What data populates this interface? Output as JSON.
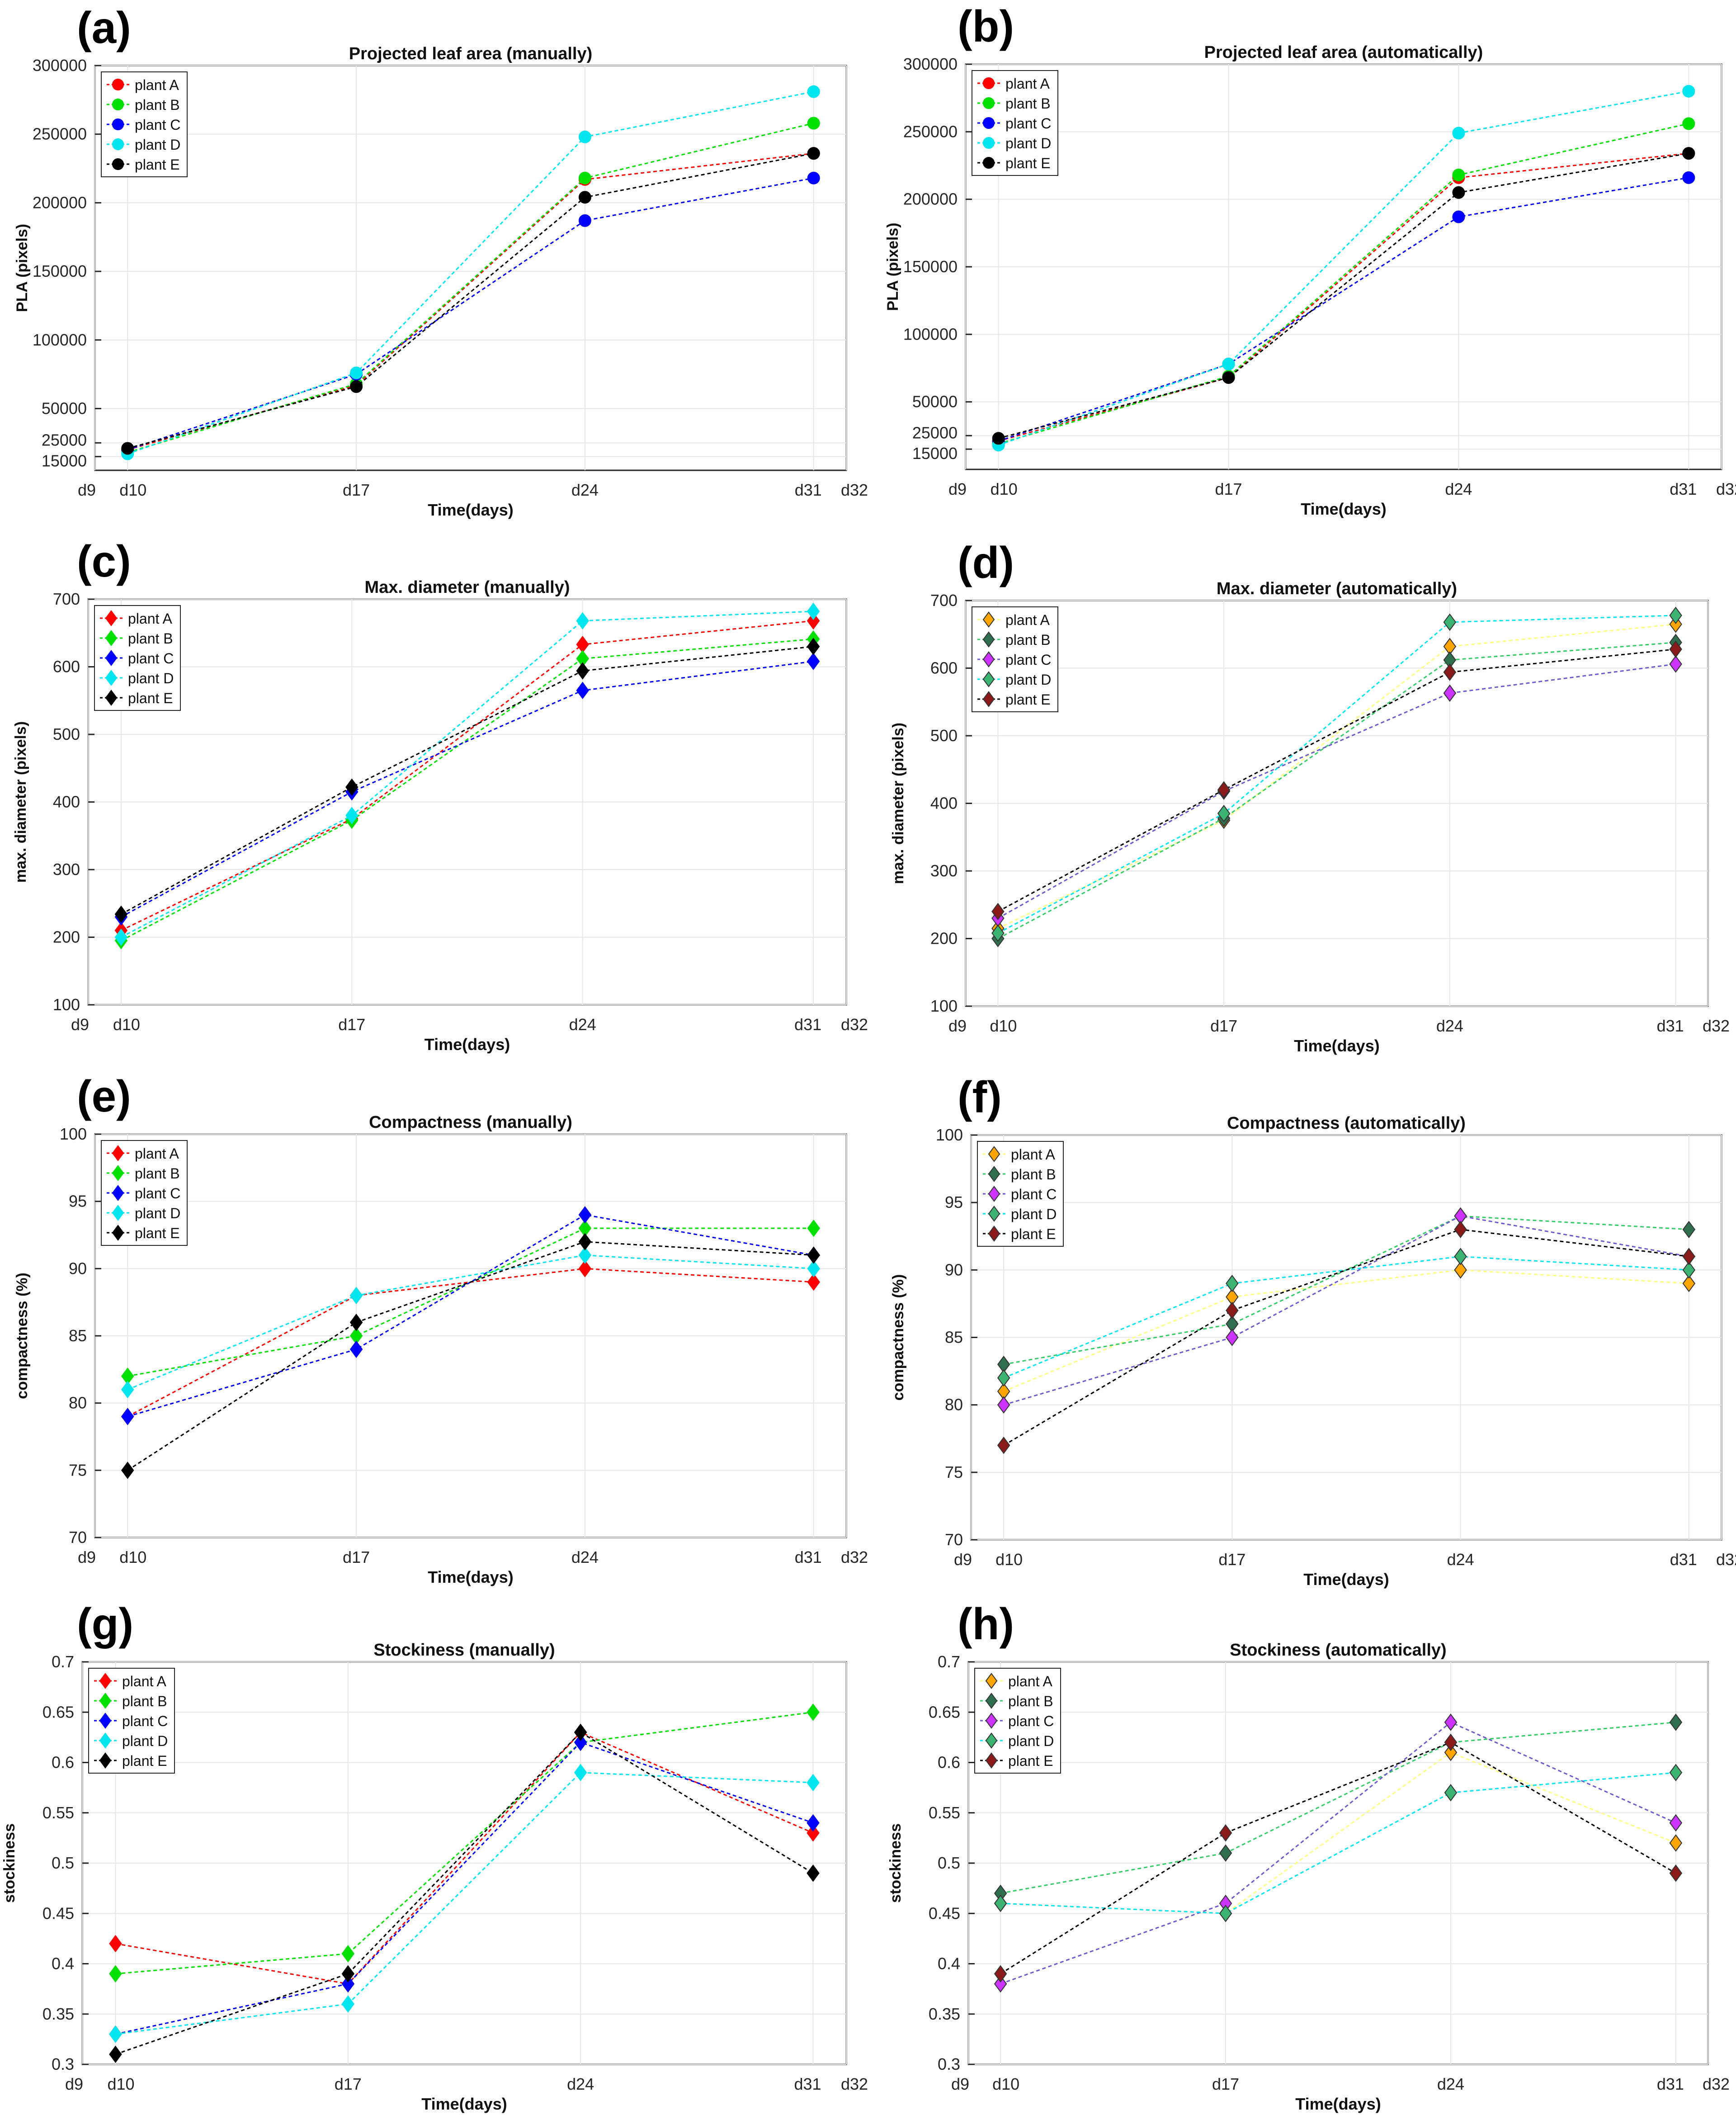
{
  "figure": {
    "marker_shape_note": "circles for PLA panels, diamonds for others"
  },
  "chart_data": [
    {
      "panel": "(a)",
      "type": "line",
      "title": "Projected leaf area (manually)",
      "xlabel": "Time(days)",
      "ylabel": "PLA (pixels)",
      "x_ticks": [
        "d9",
        "d10",
        "d17",
        "d24",
        "d31",
        "d32"
      ],
      "x_tick_values": [
        9,
        10,
        17,
        24,
        31,
        32
      ],
      "xlim": [
        9,
        32
      ],
      "y_ticks": [
        15000,
        25000,
        50000,
        100000,
        150000,
        200000,
        250000,
        300000
      ],
      "ylim": [
        5000,
        300000
      ],
      "marker": "circle",
      "legend": "top-left",
      "grid": true,
      "x": [
        10,
        17,
        24,
        31
      ],
      "series": [
        {
          "name": "plant A",
          "color": "#ff0000",
          "face": "#ff0000",
          "values": [
            20000,
            67000,
            217000,
            236000
          ]
        },
        {
          "name": "plant B",
          "color": "#00e000",
          "face": "#00e000",
          "values": [
            18000,
            68000,
            218000,
            258000
          ]
        },
        {
          "name": "plant C",
          "color": "#0000ff",
          "face": "#0000ff",
          "values": [
            20000,
            75000,
            187000,
            218000
          ]
        },
        {
          "name": "plant D",
          "color": "#00e5ee",
          "face": "#00e5ee",
          "values": [
            17000,
            76000,
            248000,
            281000
          ]
        },
        {
          "name": "plant E",
          "color": "#000000",
          "face": "#000000",
          "values": [
            21000,
            66000,
            204000,
            236000
          ]
        }
      ]
    },
    {
      "panel": "(b)",
      "type": "line",
      "title": "Projected leaf area (automatically)",
      "xlabel": "Time(days)",
      "ylabel": "PLA (pixels)",
      "x_ticks": [
        "d9",
        "d10",
        "d17",
        "d24",
        "d31",
        "d32"
      ],
      "x_tick_values": [
        9,
        10,
        17,
        24,
        31,
        32
      ],
      "xlim": [
        9,
        32
      ],
      "y_ticks": [
        15000,
        25000,
        50000,
        100000,
        150000,
        200000,
        250000,
        300000
      ],
      "ylim": [
        0,
        300000
      ],
      "marker": "circle",
      "legend": "top-left",
      "grid": true,
      "x": [
        10,
        17,
        24,
        31
      ],
      "series": [
        {
          "name": "plant A",
          "color": "#ff0000",
          "face": "#ff0000",
          "values": [
            21000,
            68000,
            216000,
            234000
          ]
        },
        {
          "name": "plant B",
          "color": "#00e000",
          "face": "#00e000",
          "values": [
            19000,
            69000,
            218000,
            256000
          ]
        },
        {
          "name": "plant C",
          "color": "#0000ff",
          "face": "#0000ff",
          "values": [
            21000,
            78000,
            187000,
            216000
          ]
        },
        {
          "name": "plant D",
          "color": "#00e5ee",
          "face": "#00e5ee",
          "values": [
            18000,
            78000,
            249000,
            280000
          ]
        },
        {
          "name": "plant E",
          "color": "#000000",
          "face": "#000000",
          "values": [
            23000,
            68000,
            205000,
            234000
          ]
        }
      ]
    },
    {
      "panel": "(c)",
      "type": "line",
      "title": "Max. diameter (manually)",
      "xlabel": "Time(days)",
      "ylabel": "max. diameter (pixels)",
      "x_ticks": [
        "d9",
        "d10",
        "d17",
        "d24",
        "d31",
        "d32"
      ],
      "x_tick_values": [
        9,
        10,
        17,
        24,
        31,
        32
      ],
      "xlim": [
        9,
        32
      ],
      "y_ticks": [
        100,
        200,
        300,
        400,
        500,
        600,
        700
      ],
      "ylim": [
        100,
        700
      ],
      "marker": "diamond",
      "legend": "top-left",
      "grid": true,
      "x": [
        10,
        17,
        24,
        31
      ],
      "series": [
        {
          "name": "plant A",
          "color": "#ff0000",
          "face": "#ff0000",
          "values": [
            210,
            375,
            633,
            668
          ]
        },
        {
          "name": "plant B",
          "color": "#00e000",
          "face": "#00e000",
          "values": [
            195,
            373,
            612,
            641
          ]
        },
        {
          "name": "plant C",
          "color": "#0000ff",
          "face": "#0000ff",
          "values": [
            230,
            415,
            565,
            608
          ]
        },
        {
          "name": "plant D",
          "color": "#00e5ee",
          "face": "#00e5ee",
          "values": [
            200,
            380,
            668,
            682
          ]
        },
        {
          "name": "plant E",
          "color": "#000000",
          "face": "#000000",
          "values": [
            234,
            422,
            594,
            630
          ]
        }
      ]
    },
    {
      "panel": "(d)",
      "type": "line",
      "title": "Max. diameter (automatically)",
      "xlabel": "Time(days)",
      "ylabel": "max. diameter (pixels)",
      "x_ticks": [
        "d9",
        "d10",
        "d17",
        "d24",
        "d31",
        "d32"
      ],
      "x_tick_values": [
        9,
        10,
        17,
        24,
        31,
        32
      ],
      "xlim": [
        9,
        32
      ],
      "y_ticks": [
        100,
        200,
        300,
        400,
        500,
        600,
        700
      ],
      "ylim": [
        100,
        700
      ],
      "marker": "diamond",
      "legend": "top-left",
      "grid": true,
      "x": [
        10,
        17,
        24,
        31
      ],
      "series": [
        {
          "name": "plant A",
          "color": "#ffff80",
          "face": "#ffa500",
          "values": [
            215,
            375,
            632,
            665
          ]
        },
        {
          "name": "plant B",
          "color": "#33cc66",
          "face": "#2f6f4f",
          "values": [
            200,
            378,
            612,
            638
          ]
        },
        {
          "name": "plant C",
          "color": "#6a5acd",
          "face": "#cc33ff",
          "values": [
            230,
            418,
            563,
            606
          ]
        },
        {
          "name": "plant D",
          "color": "#00e5ee",
          "face": "#3cb371",
          "values": [
            208,
            385,
            668,
            678
          ]
        },
        {
          "name": "plant E",
          "color": "#000000",
          "face": "#8b1a1a",
          "values": [
            240,
            420,
            594,
            628
          ]
        }
      ]
    },
    {
      "panel": "(e)",
      "type": "line",
      "title": "Compactness (manually)",
      "xlabel": "Time(days)",
      "ylabel": "compactness (%)",
      "x_ticks": [
        "d9",
        "d10",
        "d17",
        "d24",
        "d31",
        "d32"
      ],
      "x_tick_values": [
        9,
        10,
        17,
        24,
        31,
        32
      ],
      "xlim": [
        9,
        32
      ],
      "y_ticks": [
        70,
        75,
        80,
        85,
        90,
        95,
        100
      ],
      "ylim": [
        70,
        100
      ],
      "marker": "diamond",
      "legend": "top-left",
      "grid": true,
      "x": [
        10,
        17,
        24,
        31
      ],
      "series": [
        {
          "name": "plant A",
          "color": "#ff0000",
          "face": "#ff0000",
          "values": [
            79,
            88,
            90,
            89
          ]
        },
        {
          "name": "plant B",
          "color": "#00e000",
          "face": "#00e000",
          "values": [
            82,
            85,
            93,
            93
          ]
        },
        {
          "name": "plant C",
          "color": "#0000ff",
          "face": "#0000ff",
          "values": [
            79,
            84,
            94,
            91
          ]
        },
        {
          "name": "plant D",
          "color": "#00e5ee",
          "face": "#00e5ee",
          "values": [
            81,
            88,
            91,
            90
          ]
        },
        {
          "name": "plant E",
          "color": "#000000",
          "face": "#000000",
          "values": [
            75,
            86,
            92,
            91
          ]
        }
      ]
    },
    {
      "panel": "(f)",
      "type": "line",
      "title": "Compactness (automatically)",
      "xlabel": "Time(days)",
      "ylabel": "compactness (%)",
      "x_ticks": [
        "d9",
        "d10",
        "d17",
        "d24",
        "d31",
        "d32"
      ],
      "x_tick_values": [
        9,
        10,
        17,
        24,
        31,
        32
      ],
      "xlim": [
        9,
        32
      ],
      "y_ticks": [
        70,
        75,
        80,
        85,
        90,
        95,
        100
      ],
      "ylim": [
        70,
        100
      ],
      "marker": "diamond",
      "legend": "top-left",
      "grid": true,
      "x": [
        10,
        17,
        24,
        31
      ],
      "series": [
        {
          "name": "plant A",
          "color": "#ffff80",
          "face": "#ffa500",
          "values": [
            81,
            88,
            90,
            89
          ]
        },
        {
          "name": "plant B",
          "color": "#33cc66",
          "face": "#2f6f4f",
          "values": [
            83,
            86,
            94,
            93
          ]
        },
        {
          "name": "plant C",
          "color": "#6a5acd",
          "face": "#cc33ff",
          "values": [
            80,
            85,
            94,
            91
          ]
        },
        {
          "name": "plant D",
          "color": "#00e5ee",
          "face": "#3cb371",
          "values": [
            82,
            89,
            91,
            90
          ]
        },
        {
          "name": "plant E",
          "color": "#000000",
          "face": "#8b1a1a",
          "values": [
            77,
            87,
            93,
            91
          ]
        }
      ]
    },
    {
      "panel": "(g)",
      "type": "line",
      "title": "Stockiness (manually)",
      "xlabel": "Time(days)",
      "ylabel": "stockiness",
      "x_ticks": [
        "d9",
        "d10",
        "d17",
        "d24",
        "d31",
        "d32"
      ],
      "x_tick_values": [
        9,
        10,
        17,
        24,
        31,
        32
      ],
      "xlim": [
        9,
        32
      ],
      "y_ticks": [
        0.3,
        0.35,
        0.4,
        0.45,
        0.5,
        0.55,
        0.6,
        0.65,
        0.7
      ],
      "ylim": [
        0.3,
        0.7
      ],
      "marker": "diamond",
      "legend": "top-left",
      "grid": true,
      "x": [
        10,
        17,
        24,
        31
      ],
      "series": [
        {
          "name": "plant A",
          "color": "#ff0000",
          "face": "#ff0000",
          "values": [
            0.42,
            0.38,
            0.63,
            0.53
          ]
        },
        {
          "name": "plant B",
          "color": "#00e000",
          "face": "#00e000",
          "values": [
            0.39,
            0.41,
            0.62,
            0.65
          ]
        },
        {
          "name": "plant C",
          "color": "#0000ff",
          "face": "#0000ff",
          "values": [
            0.33,
            0.38,
            0.62,
            0.54
          ]
        },
        {
          "name": "plant D",
          "color": "#00e5ee",
          "face": "#00e5ee",
          "values": [
            0.33,
            0.36,
            0.59,
            0.58
          ]
        },
        {
          "name": "plant E",
          "color": "#000000",
          "face": "#000000",
          "values": [
            0.31,
            0.39,
            0.63,
            0.49
          ]
        }
      ]
    },
    {
      "panel": "(h)",
      "type": "line",
      "title": "Stockiness (automatically)",
      "xlabel": "Time(days)",
      "ylabel": "stockiness",
      "x_ticks": [
        "d9",
        "d10",
        "d17",
        "d24",
        "d31",
        "d32"
      ],
      "x_tick_values": [
        9,
        10,
        17,
        24,
        31,
        32
      ],
      "xlim": [
        9,
        32
      ],
      "y_ticks": [
        0.3,
        0.35,
        0.4,
        0.45,
        0.5,
        0.55,
        0.6,
        0.65,
        0.7
      ],
      "ylim": [
        0.3,
        0.7
      ],
      "marker": "diamond",
      "legend": "top-left",
      "grid": true,
      "x": [
        10,
        17,
        24,
        31
      ],
      "series": [
        {
          "name": "plant A",
          "color": "#ffff80",
          "face": "#ffa500",
          "values": [
            0.46,
            0.45,
            0.61,
            0.52
          ]
        },
        {
          "name": "plant B",
          "color": "#33cc66",
          "face": "#2f6f4f",
          "values": [
            0.47,
            0.51,
            0.62,
            0.64
          ]
        },
        {
          "name": "plant C",
          "color": "#6a5acd",
          "face": "#cc33ff",
          "values": [
            0.38,
            0.46,
            0.64,
            0.54
          ]
        },
        {
          "name": "plant D",
          "color": "#00e5ee",
          "face": "#3cb371",
          "values": [
            0.46,
            0.45,
            0.57,
            0.59
          ]
        },
        {
          "name": "plant E",
          "color": "#000000",
          "face": "#8b1a1a",
          "values": [
            0.39,
            0.53,
            0.62,
            0.49
          ]
        }
      ]
    }
  ]
}
